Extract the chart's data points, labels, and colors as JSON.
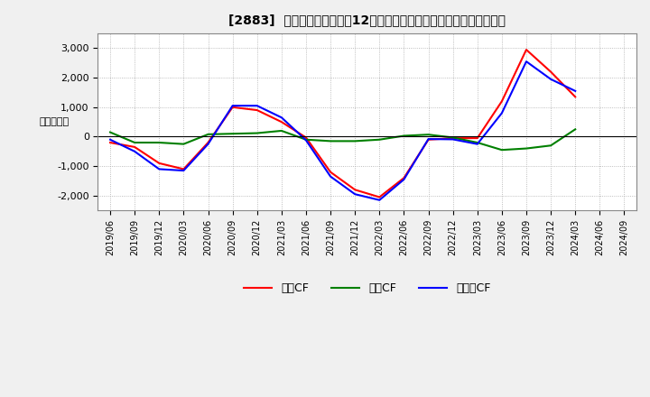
{
  "title": "[2883]  キャッシュフローの12か月移動合計の対前年同期増減額の推移",
  "ylabel": "（百万円）",
  "background_color": "#f0f0f0",
  "plot_bg_color": "#ffffff",
  "x_labels": [
    "2019/06",
    "2019/09",
    "2019/12",
    "2020/03",
    "2020/06",
    "2020/09",
    "2020/12",
    "2021/03",
    "2021/06",
    "2021/09",
    "2021/12",
    "2022/03",
    "2022/06",
    "2022/09",
    "2022/12",
    "2023/03",
    "2023/06",
    "2023/09",
    "2023/12",
    "2024/03",
    "2024/06",
    "2024/09"
  ],
  "operating_cf": [
    -200,
    -350,
    -900,
    -1100,
    -200,
    1000,
    900,
    500,
    -30,
    -1200,
    -1800,
    -2050,
    -1400,
    -100,
    -50,
    -50,
    1200,
    2950,
    2200,
    1350,
    null,
    null
  ],
  "investing_cf": [
    150,
    -200,
    -200,
    -250,
    80,
    100,
    120,
    200,
    -100,
    -150,
    -150,
    -100,
    30,
    70,
    -30,
    -200,
    -450,
    -400,
    -300,
    250,
    null,
    null
  ],
  "free_cf": [
    -100,
    -500,
    -1100,
    -1150,
    -250,
    1050,
    1050,
    650,
    -120,
    -1350,
    -1950,
    -2150,
    -1450,
    -80,
    -90,
    -250,
    800,
    2550,
    1950,
    1550,
    null,
    null
  ],
  "operating_color": "#ff0000",
  "investing_color": "#008000",
  "free_color": "#0000ff",
  "ylim": [
    -2500,
    3500
  ],
  "yticks": [
    -2000,
    -1000,
    0,
    1000,
    2000,
    3000
  ],
  "legend_labels": [
    "営業CF",
    "投資CF",
    "フリーCF"
  ]
}
